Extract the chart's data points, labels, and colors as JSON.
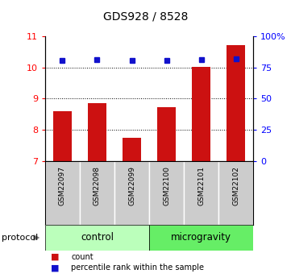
{
  "title": "GDS928 / 8528",
  "samples": [
    "GSM22097",
    "GSM22098",
    "GSM22099",
    "GSM22100",
    "GSM22101",
    "GSM22102"
  ],
  "bar_values": [
    8.6,
    8.87,
    7.76,
    8.72,
    10.02,
    10.7
  ],
  "bar_bottom": 7.0,
  "percentile_values": [
    80.5,
    81.0,
    80.5,
    80.5,
    81.5,
    82.0
  ],
  "bar_color": "#cc1111",
  "dot_color": "#1111cc",
  "ylim_left": [
    7,
    11
  ],
  "ylim_right": [
    0,
    100
  ],
  "yticks_left": [
    7,
    8,
    9,
    10,
    11
  ],
  "yticks_right": [
    0,
    25,
    50,
    75,
    100
  ],
  "ytick_labels_right": [
    "0",
    "25",
    "50",
    "75",
    "100%"
  ],
  "grid_lines": [
    8,
    9,
    10
  ],
  "groups": [
    {
      "label": "control",
      "indices": [
        0,
        1,
        2
      ],
      "color": "#bbffbb"
    },
    {
      "label": "microgravity",
      "indices": [
        3,
        4,
        5
      ],
      "color": "#66ee66"
    }
  ],
  "protocol_label": "protocol",
  "legend_items": [
    {
      "label": "count",
      "color": "#cc1111"
    },
    {
      "label": "percentile rank within the sample",
      "color": "#1111cc"
    }
  ],
  "bar_width": 0.55,
  "background_color": "#ffffff",
  "sample_box_color": "#cccccc",
  "title_fontsize": 10,
  "tick_fontsize": 8,
  "label_fontsize": 8
}
